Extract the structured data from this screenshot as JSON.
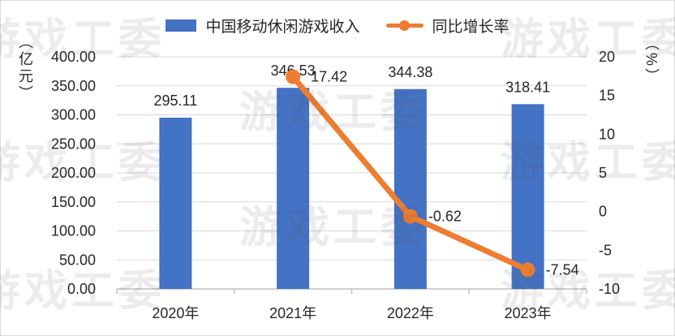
{
  "legend": {
    "bar_label": "中国移动休闲游戏收入",
    "line_label": "同比增长率"
  },
  "watermark": {
    "text": "游戏工委",
    "positions": [
      [
        -28,
        22
      ],
      [
        617,
        22
      ],
      [
        295,
        112
      ],
      [
        -28,
        174
      ],
      [
        617,
        174
      ],
      [
        295,
        254
      ],
      [
        -28,
        332
      ],
      [
        617,
        332
      ]
    ]
  },
  "chart_data": {
    "type": "combo-bar-line",
    "categories": [
      "2020年",
      "2021年",
      "2022年",
      "2023年"
    ],
    "series": [
      {
        "name": "中国移动休闲游戏收入",
        "type": "bar",
        "axis": "left",
        "color": "#4472C4",
        "values": [
          295.11,
          346.53,
          344.38,
          318.41
        ],
        "labels": [
          "295.11",
          "346.53",
          "344.38",
          "318.41"
        ]
      },
      {
        "name": "同比增长率",
        "type": "line",
        "axis": "right",
        "color": "#ED7D31",
        "values": [
          null,
          17.42,
          -0.62,
          -7.54
        ],
        "labels": [
          null,
          "17.42",
          "-0.62",
          "-7.54"
        ]
      }
    ],
    "left_axis": {
      "title": "（亿元）",
      "min": 0,
      "max": 400,
      "step": 50,
      "ticks": [
        "400.00",
        "350.00",
        "300.00",
        "250.00",
        "200.00",
        "150.00",
        "100.00",
        "50.00",
        "0.00"
      ]
    },
    "right_axis": {
      "title": "（%）",
      "min": -10,
      "max": 20,
      "step": 5,
      "ticks": [
        "20",
        "15",
        "10",
        "5",
        "0",
        "-5",
        "-10"
      ]
    },
    "grid": true,
    "legend_position": "top",
    "colors": {
      "gridline": "#D9D9D9",
      "axis_line": "#BFBFBF",
      "text": "#262626"
    }
  }
}
